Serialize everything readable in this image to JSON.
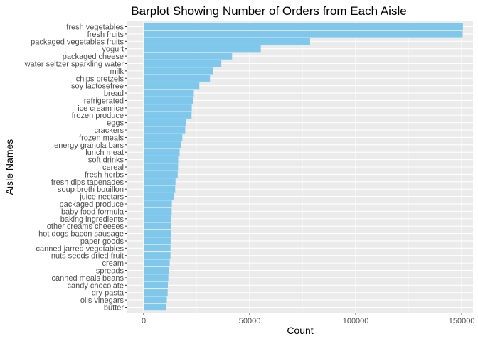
{
  "chart_data": {
    "type": "bar",
    "orientation": "horizontal",
    "title": "Barplot Showing Number of Orders from Each Aisle",
    "xlabel": "Count",
    "ylabel": "Aisle Names",
    "xlim": [
      0,
      155000
    ],
    "xticks": [
      0,
      50000,
      100000,
      150000
    ],
    "xtick_labels": [
      "0",
      "50000",
      "100000",
      "150000"
    ],
    "grid": true,
    "bar_color": "#7FC8EB",
    "panel_color": "#EBEBEB",
    "categories": [
      "fresh vegetables",
      "fresh fruits",
      "packaged vegetables fruits",
      "yogurt",
      "packaged cheese",
      "water seltzer sparkling water",
      "milk",
      "chips pretzels",
      "soy lactosefree",
      "bread",
      "refrigerated",
      "ice cream ice",
      "frozen produce",
      "eggs",
      "crackers",
      "frozen meals",
      "energy granola bars",
      "lunch meat",
      "soft drinks",
      "cereal",
      "fresh herbs",
      "fresh dips tapenades",
      "soup broth bouillon",
      "juice nectars",
      "packaged produce",
      "baby food formula",
      "baking ingredients",
      "other creams cheeses",
      "hot dogs bacon sausage",
      "paper goods",
      "canned jarred vegetables",
      "nuts seeds dried fruit",
      "cream",
      "spreads",
      "canned meals beans",
      "candy chocolate",
      "dry pasta",
      "oils vinegars",
      "butter"
    ],
    "values": [
      150609,
      150473,
      78493,
      55240,
      41699,
      36617,
      32644,
      31269,
      26240,
      23635,
      23228,
      22676,
      22583,
      19875,
      19592,
      18221,
      17676,
      16957,
      16279,
      16201,
      16052,
      15013,
      14850,
      14193,
      13296,
      13198,
      12890,
      12820,
      12768,
      12712,
      12639,
      12628,
      12281,
      11873,
      11626,
      11418,
      11314,
      10910,
      10732
    ]
  }
}
